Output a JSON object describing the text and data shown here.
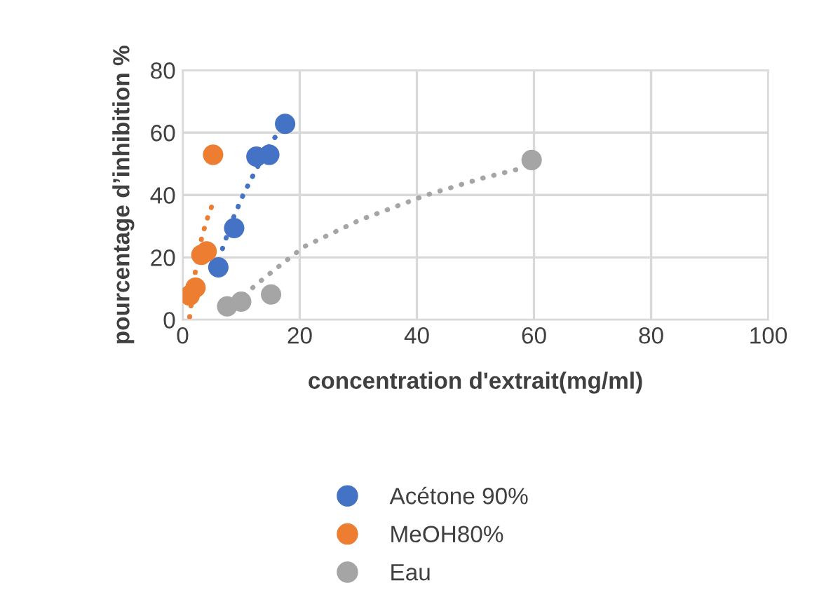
{
  "chart_data": {
    "type": "scatter",
    "xlabel": "concentration d'extrait(mg/ml)",
    "ylabel": "pourcentage d’inhibition %",
    "xlim": [
      0,
      100
    ],
    "xticks": [
      0,
      20,
      40,
      60,
      80,
      100
    ],
    "ylim": [
      0,
      80
    ],
    "yticks": [
      0,
      20,
      40,
      60,
      80
    ],
    "grid": true,
    "legend": "bottom",
    "marker": "circle",
    "series": [
      {
        "name": "Acétone 90%",
        "color": "#4472c4",
        "x": [
          6.1,
          8.8,
          12.6,
          14.8,
          17.5
        ],
        "values": [
          16.8,
          29.4,
          52.3,
          52.9,
          62.8
        ]
      },
      {
        "name": "MeOH80%",
        "color": "#ed7d31",
        "x": [
          1.2,
          2.2,
          3.2,
          4.1,
          5.2
        ],
        "values": [
          7.8,
          10.3,
          20.8,
          21.9,
          52.9
        ]
      },
      {
        "name": "Eau",
        "color": "#a5a5a5",
        "x": [
          7.6,
          10.0,
          15.1,
          59.6
        ],
        "values": [
          4.3,
          5.8,
          8.1,
          51.2
        ]
      },
      {
        "type": "line",
        "line_style": "dotted",
        "marker": "none",
        "color": "#4472c4",
        "x": [
          6.8,
          8.5,
          10.4,
          12.5,
          15.1,
          17.0
        ],
        "values": [
          22.8,
          32,
          40.3,
          48,
          56.8,
          61.5
        ]
      },
      {
        "type": "line",
        "line_style": "dotted",
        "marker": "none",
        "color": "#ed7d31",
        "x": [
          1.2,
          2.2,
          3.3,
          4.4,
          5.0
        ],
        "values": [
          0.9,
          15.9,
          26.8,
          33.6,
          36.5
        ]
      },
      {
        "type": "line",
        "line_style": "dotted",
        "marker": "none",
        "color": "#a5a5a5",
        "x": [
          7.5,
          9.6,
          14.4,
          20.7,
          30.3,
          41.5,
          51.0,
          57.8
        ],
        "values": [
          3.5,
          6.6,
          14.1,
          23.4,
          32,
          39.9,
          45.3,
          48.5
        ]
      }
    ]
  }
}
